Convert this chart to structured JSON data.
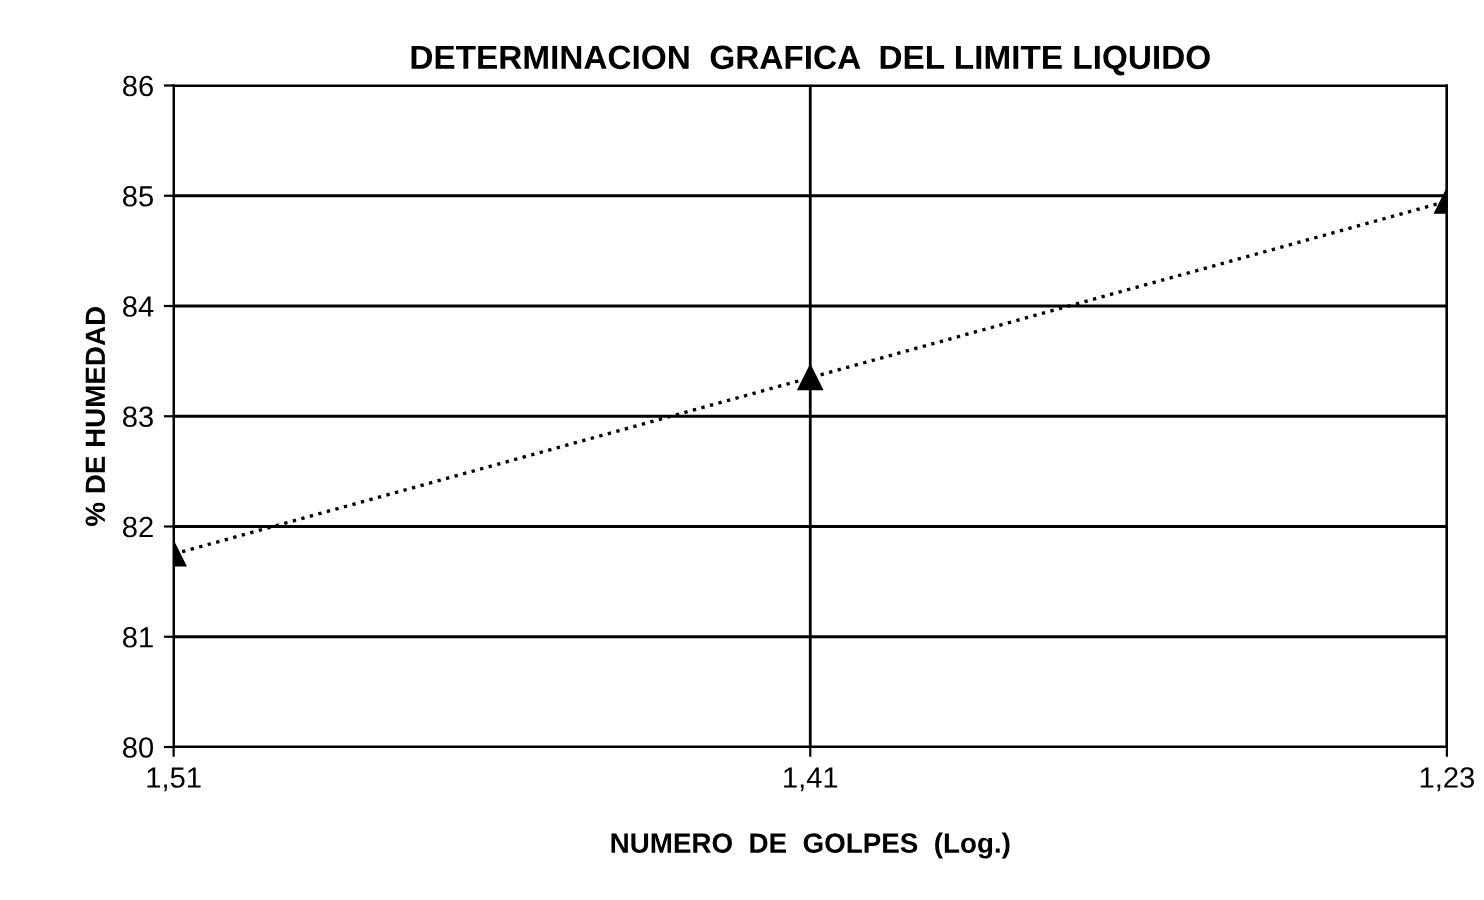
{
  "chart_data": {
    "type": "line",
    "title": "DETERMINACION  GRAFICA  DEL LIMITE LIQUIDO",
    "xlabel": "NUMERO  DE  GOLPES  (Log.)",
    "ylabel": "% DE HUMEDAD",
    "categories": [
      "1,51",
      "1,41",
      "1,23"
    ],
    "series": [
      {
        "color": "#000000",
        "values": [
          81.75,
          83.35,
          84.95
        ]
      }
    ],
    "ylim": [
      80,
      86
    ],
    "yticks": [
      80,
      81,
      82,
      83,
      84,
      85,
      86
    ],
    "grid": true,
    "legend": false,
    "marker": "triangle",
    "line_style": "dotted"
  }
}
